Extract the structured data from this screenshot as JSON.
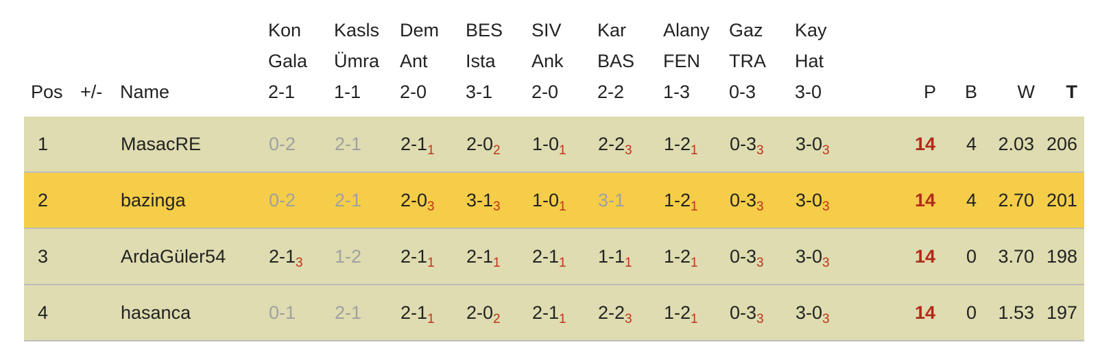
{
  "headers": {
    "pos": "Pos",
    "plusminus": "+/-",
    "name": "Name",
    "games": [
      {
        "line1": "Kon",
        "line2": "Gala",
        "line3": "2-1"
      },
      {
        "line1": "Kasls",
        "line2": "Ümra",
        "line3": "1-1"
      },
      {
        "line1": "Dem",
        "line2": "Ant",
        "line3": "2-0"
      },
      {
        "line1": "BES",
        "line2": "Ista",
        "line3": "3-1"
      },
      {
        "line1": "SIV",
        "line2": "Ank",
        "line3": "2-0"
      },
      {
        "line1": "Kar",
        "line2": "BAS",
        "line3": "2-2"
      },
      {
        "line1": "Alany",
        "line2": "FEN",
        "line3": "1-3"
      },
      {
        "line1": "Gaz",
        "line2": "TRA",
        "line3": "0-3"
      },
      {
        "line1": "Kay",
        "line2": "Hat",
        "line3": "3-0"
      }
    ],
    "p": "P",
    "b": "B",
    "w": "W",
    "t": "T"
  },
  "colors": {
    "row_bg": "#dedcb0",
    "highlight_bg": "#f5cd48",
    "points_color": "#b22a1a",
    "subscript_color": "#c0321e",
    "missed_color": "#a0a0a0"
  },
  "rows": [
    {
      "pos": "1",
      "plusminus": "",
      "name": "MasacRE",
      "highlight": false,
      "picks": [
        {
          "score": "0-2",
          "pts": "",
          "miss": true
        },
        {
          "score": "2-1",
          "pts": "",
          "miss": true
        },
        {
          "score": "2-1",
          "pts": "1",
          "miss": false
        },
        {
          "score": "2-0",
          "pts": "2",
          "miss": false
        },
        {
          "score": "1-0",
          "pts": "1",
          "miss": false
        },
        {
          "score": "2-2",
          "pts": "3",
          "miss": false
        },
        {
          "score": "1-2",
          "pts": "1",
          "miss": false
        },
        {
          "score": "0-3",
          "pts": "3",
          "miss": false
        },
        {
          "score": "3-0",
          "pts": "3",
          "miss": false
        }
      ],
      "p": "14",
      "b": "4",
      "w": "2.03",
      "t": "206"
    },
    {
      "pos": "2",
      "plusminus": "",
      "name": "bazinga",
      "highlight": true,
      "picks": [
        {
          "score": "0-2",
          "pts": "",
          "miss": true
        },
        {
          "score": "2-1",
          "pts": "",
          "miss": true
        },
        {
          "score": "2-0",
          "pts": "3",
          "miss": false
        },
        {
          "score": "3-1",
          "pts": "3",
          "miss": false
        },
        {
          "score": "1-0",
          "pts": "1",
          "miss": false
        },
        {
          "score": "3-1",
          "pts": "",
          "miss": true
        },
        {
          "score": "1-2",
          "pts": "1",
          "miss": false
        },
        {
          "score": "0-3",
          "pts": "3",
          "miss": false
        },
        {
          "score": "3-0",
          "pts": "3",
          "miss": false
        }
      ],
      "p": "14",
      "b": "4",
      "w": "2.70",
      "t": "201"
    },
    {
      "pos": "3",
      "plusminus": "",
      "name": "ArdaGüler54",
      "highlight": false,
      "picks": [
        {
          "score": "2-1",
          "pts": "3",
          "miss": false
        },
        {
          "score": "1-2",
          "pts": "",
          "miss": true
        },
        {
          "score": "2-1",
          "pts": "1",
          "miss": false
        },
        {
          "score": "2-1",
          "pts": "1",
          "miss": false
        },
        {
          "score": "2-1",
          "pts": "1",
          "miss": false
        },
        {
          "score": "1-1",
          "pts": "1",
          "miss": false
        },
        {
          "score": "1-2",
          "pts": "1",
          "miss": false
        },
        {
          "score": "0-3",
          "pts": "3",
          "miss": false
        },
        {
          "score": "3-0",
          "pts": "3",
          "miss": false
        }
      ],
      "p": "14",
      "b": "0",
      "w": "3.70",
      "t": "198"
    },
    {
      "pos": "4",
      "plusminus": "",
      "name": "hasanca",
      "highlight": false,
      "picks": [
        {
          "score": "0-1",
          "pts": "",
          "miss": true
        },
        {
          "score": "2-1",
          "pts": "",
          "miss": true
        },
        {
          "score": "2-1",
          "pts": "1",
          "miss": false
        },
        {
          "score": "2-0",
          "pts": "2",
          "miss": false
        },
        {
          "score": "2-1",
          "pts": "1",
          "miss": false
        },
        {
          "score": "2-2",
          "pts": "3",
          "miss": false
        },
        {
          "score": "1-2",
          "pts": "1",
          "miss": false
        },
        {
          "score": "0-3",
          "pts": "3",
          "miss": false
        },
        {
          "score": "3-0",
          "pts": "3",
          "miss": false
        }
      ],
      "p": "14",
      "b": "0",
      "w": "1.53",
      "t": "197"
    }
  ]
}
